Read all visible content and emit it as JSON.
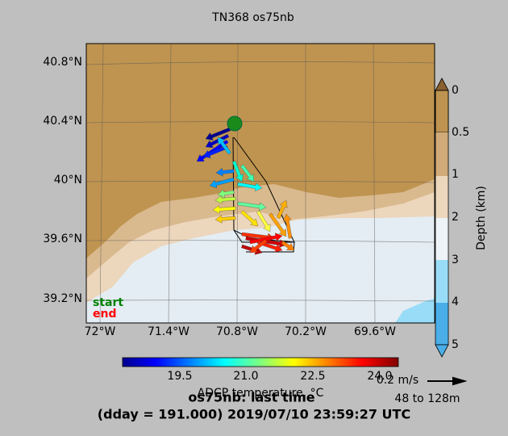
{
  "map": {
    "title": "TN368 os75nb",
    "lat_ticks": [
      "40.8°N",
      "40.4°N",
      "40°N",
      "39.6°N",
      "39.2°N"
    ],
    "lon_ticks": [
      "72°W",
      "71.4°W",
      "70.8°W",
      "70.2°W",
      "69.6°W"
    ],
    "legend": {
      "start": "start",
      "end": "end"
    },
    "depth_colorbar": {
      "label": "Depth (km)",
      "ticks": [
        "0",
        "0.5",
        "1",
        "2",
        "3",
        "4",
        "5"
      ]
    },
    "temp_colorbar": {
      "label": "ADCP temperature, °C",
      "ticks": [
        "19.5",
        "21.0",
        "22.5",
        "24.0"
      ]
    },
    "scale": {
      "speed": "0.2 m/s",
      "depth_range": "48 to 128m"
    },
    "footer": {
      "line1": "os75nb: last time",
      "line2": "(dday = 191.000) 2019/07/10 23:59:27 UTC"
    }
  }
}
